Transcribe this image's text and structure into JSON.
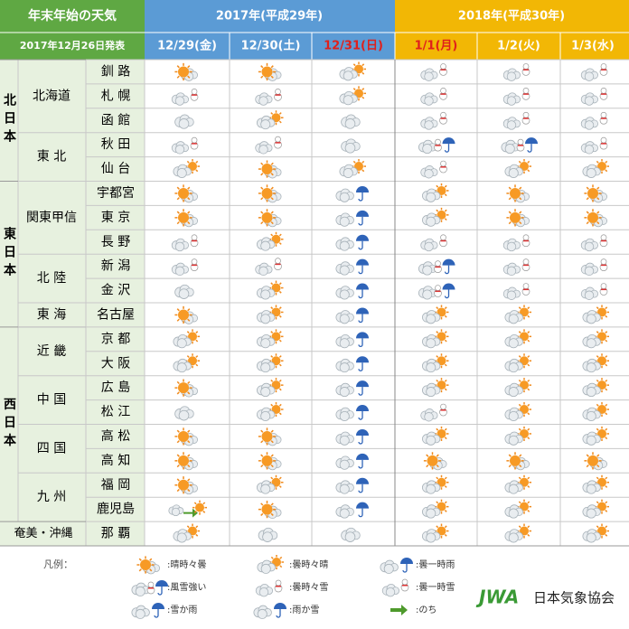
{
  "header": {
    "title": "年末年始の天気",
    "issued": "2017年12月26日発表",
    "years": [
      "2017年(平成29年)",
      "2018年(平成30年)"
    ],
    "dates": [
      "12/29(金)",
      "12/30(土)",
      "12/31(日)",
      "1/1(月)",
      "1/2(火)",
      "1/3(水)"
    ]
  },
  "regions": [
    "北日本",
    "東日本",
    "西日本",
    "奄美・沖縄"
  ],
  "subregions": [
    "北海道",
    "東 北",
    "関東甲信",
    "北 陸",
    "東 海",
    "近 畿",
    "中 国",
    "四 国",
    "九 州"
  ],
  "cities": [
    "釧 路",
    "札 幌",
    "函 館",
    "秋 田",
    "仙 台",
    "宇都宮",
    "東 京",
    "長 野",
    "新 潟",
    "金 沢",
    "名古屋",
    "京 都",
    "大 阪",
    "広 島",
    "松 江",
    "高 松",
    "高 知",
    "福 岡",
    "鹿児島",
    "那 覇"
  ],
  "legend": {
    "label": "凡例：",
    "items": [
      ":晴時々曇",
      ":曇時々晴",
      ":曇一時雨",
      ":風雪強い",
      ":曇時々雪",
      ":曇一時雪",
      ":雪か雨",
      ":雨か雪",
      ":のち"
    ]
  },
  "logo": {
    "abbr": "JWA",
    "text": "日本気象協会"
  }
}
